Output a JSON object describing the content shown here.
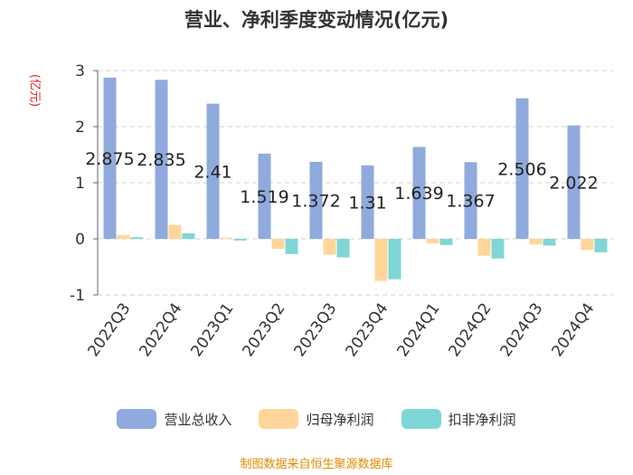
{
  "title": "营业、净利季度变动情况(亿元)",
  "unit": "(亿元)",
  "source": "制图数据来自恒生聚源数据库",
  "chart_data": {
    "type": "bar",
    "categories": [
      "2022Q3",
      "2022Q4",
      "2023Q1",
      "2023Q2",
      "2023Q3",
      "2023Q4",
      "2024Q1",
      "2024Q2",
      "2024Q3",
      "2024Q4"
    ],
    "series": [
      {
        "name": "营业总收入",
        "color": "#8faadc",
        "values": [
          2.875,
          2.835,
          2.41,
          1.519,
          1.372,
          1.31,
          1.639,
          1.367,
          2.506,
          2.022
        ],
        "labels": [
          "2.875",
          "2.835",
          "2.41",
          "1.519",
          "1.372",
          "1.31",
          "1.639",
          "1.367",
          "2.506",
          "2.022"
        ]
      },
      {
        "name": "归母净利润",
        "color": "#ffd699",
        "values": [
          0.07,
          0.25,
          0.02,
          -0.18,
          -0.28,
          -0.75,
          -0.08,
          -0.3,
          -0.1,
          -0.2
        ]
      },
      {
        "name": "扣非净利润",
        "color": "#7fd6d6",
        "values": [
          0.03,
          0.1,
          -0.03,
          -0.27,
          -0.33,
          -0.72,
          -0.11,
          -0.35,
          -0.12,
          -0.24
        ]
      }
    ],
    "yticks": [
      3,
      2,
      1,
      0,
      -1
    ],
    "ylim": [
      -1,
      3
    ],
    "grid": true,
    "legend_position": "bottom"
  }
}
